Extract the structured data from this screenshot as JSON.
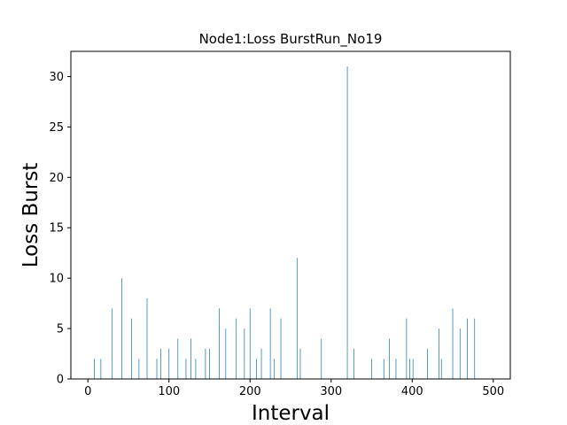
{
  "chart_data": {
    "type": "bar",
    "title": "Node1:Loss BurstRun_No19",
    "xlabel": "Interval",
    "ylabel": "Loss Burst",
    "xlim": [
      -21,
      521
    ],
    "ylim": [
      0,
      32.5
    ],
    "xticks": [
      0,
      100,
      200,
      300,
      400,
      500
    ],
    "yticks": [
      0,
      5,
      10,
      15,
      20,
      25,
      30
    ],
    "grid": false,
    "bar_color": "#1f77b4",
    "x": [
      8,
      16,
      30,
      42,
      54,
      63,
      73,
      85,
      90,
      100,
      111,
      121,
      127,
      133,
      145,
      150,
      162,
      170,
      183,
      193,
      200,
      208,
      214,
      225,
      230,
      238,
      258,
      262,
      288,
      320,
      328,
      350,
      365,
      372,
      380,
      393,
      397,
      401,
      419,
      433,
      436,
      450,
      459,
      468,
      477
    ],
    "values": [
      2,
      2,
      7,
      10,
      6,
      2,
      8,
      2,
      3,
      3,
      4,
      2,
      4,
      2,
      3,
      3,
      7,
      5,
      6,
      5,
      7,
      2,
      3,
      7,
      2,
      6,
      12,
      3,
      4,
      31,
      3,
      2,
      2,
      4,
      2,
      6,
      2,
      2,
      3,
      5,
      2,
      7,
      5,
      6,
      6
    ]
  }
}
